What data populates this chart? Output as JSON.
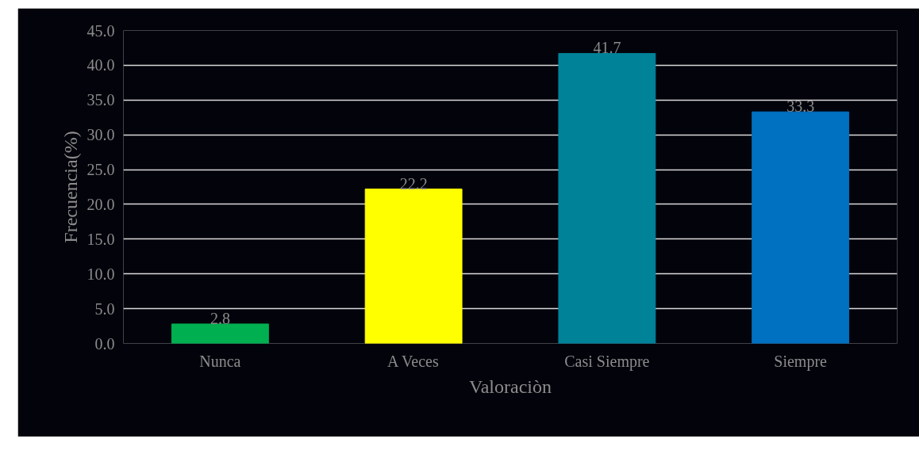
{
  "chart_data": {
    "type": "bar",
    "xlabel": "Valoraciòn",
    "ylabel": "Frecuencia(%)",
    "categories": [
      "Nunca",
      "A Veces",
      "Casi Siempre",
      "Siempre"
    ],
    "values": [
      2.8,
      22.2,
      41.7,
      33.3
    ],
    "colors": [
      "#00b050",
      "#ffff00",
      "#008299",
      "#0070c0"
    ],
    "ylim": [
      0,
      45
    ],
    "yticks": [
      {
        "value": 0,
        "label": "0.0"
      },
      {
        "value": 5,
        "label": "5.0"
      },
      {
        "value": 10,
        "label": "10.0"
      },
      {
        "value": 15,
        "label": "15.0"
      },
      {
        "value": 20,
        "label": "20.0"
      },
      {
        "value": 25,
        "label": "25.0"
      },
      {
        "value": 30,
        "label": "30.0"
      },
      {
        "value": 35,
        "label": "35.0"
      },
      {
        "value": 40,
        "label": "40.0"
      },
      {
        "value": 45,
        "label": "45.0"
      }
    ],
    "grid": "y",
    "data_labels": true
  }
}
